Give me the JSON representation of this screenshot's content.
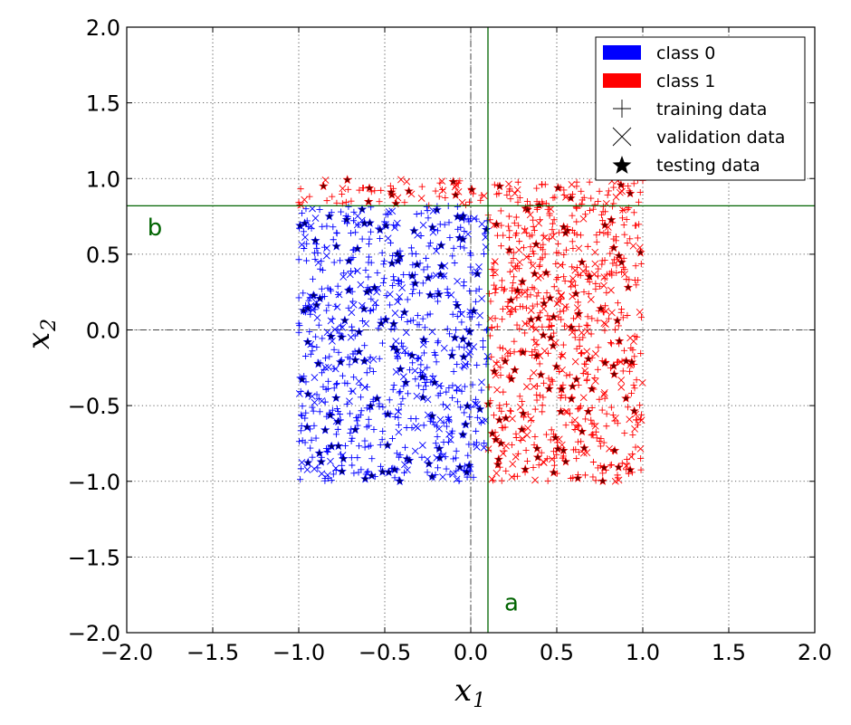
{
  "chart_data": {
    "type": "scatter",
    "title": "",
    "xlabel": "x",
    "xlabel_sub": "1",
    "ylabel": "x",
    "ylabel_sub": "2",
    "xlim": [
      -2.0,
      2.0
    ],
    "ylim": [
      -2.0,
      2.0
    ],
    "xticks": [
      -2.0,
      -1.5,
      -1.0,
      -0.5,
      0.0,
      0.5,
      1.0,
      1.5,
      2.0
    ],
    "yticks": [
      -2.0,
      -1.5,
      -1.0,
      -0.5,
      0.0,
      0.5,
      1.0,
      1.5,
      2.0
    ],
    "xtick_labels": [
      "−2.0",
      "−1.5",
      "−1.0",
      "−0.5",
      "0.0",
      "0.5",
      "1.0",
      "1.5",
      "2.0"
    ],
    "ytick_labels": [
      "−2.0",
      "−1.5",
      "−1.0",
      "−0.5",
      "0.0",
      "0.5",
      "1.0",
      "1.5",
      "2.0"
    ],
    "grid": true,
    "legend_position": "top-right",
    "sample_region": {
      "x": [
        -1.0,
        1.0
      ],
      "y": [
        -1.0,
        1.0
      ]
    },
    "classes": [
      {
        "name": "class 0",
        "color": "#0000ff",
        "testing_color": "#000066"
      },
      {
        "name": "class 1",
        "color": "#ff0000",
        "testing_color": "#660000"
      }
    ],
    "marker_types": [
      {
        "name": "training data",
        "marker": "plus"
      },
      {
        "name": "validation data",
        "marker": "x"
      },
      {
        "name": "testing data",
        "marker": "star"
      }
    ],
    "approx_point_counts": {
      "training": 1100,
      "validation": 300,
      "testing": 220
    },
    "reference_lines": [
      {
        "orientation": "vertical",
        "value": 0.0,
        "style": "dash-dot",
        "color": "#444444"
      },
      {
        "orientation": "horizontal",
        "value": 0.0,
        "style": "dash-dot",
        "color": "#444444"
      }
    ],
    "decision_lines": [
      {
        "label": "a",
        "orientation": "vertical",
        "value": 0.1,
        "color": "#006400"
      },
      {
        "label": "b",
        "orientation": "horizontal",
        "value": 0.82,
        "color": "#006400"
      }
    ],
    "class_rule": "class 1 if x1 > 0.1 or x2 > 0.82, else class 0"
  },
  "legend": {
    "items": [
      {
        "label": "class 0",
        "kind": "patch",
        "color": "#0000ff"
      },
      {
        "label": "class 1",
        "kind": "patch",
        "color": "#ff0000"
      },
      {
        "label": "training data",
        "kind": "plus",
        "color": "#000000"
      },
      {
        "label": "validation data",
        "kind": "x",
        "color": "#000000"
      },
      {
        "label": "testing data",
        "kind": "star",
        "color": "#000000"
      }
    ]
  },
  "annotations": {
    "a": "a",
    "b": "b"
  }
}
